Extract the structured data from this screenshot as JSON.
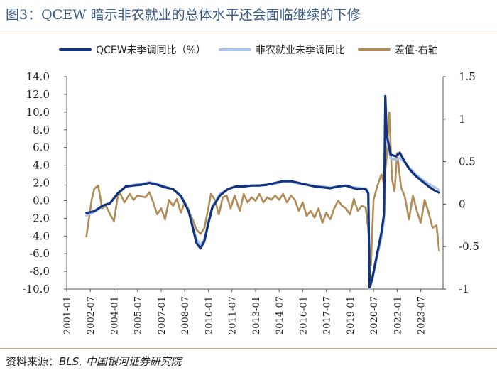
{
  "title": "图3：QCEW 暗示非农就业的总体水平还会面临继续的下修",
  "source": {
    "prefix": "资料来源：",
    "text": "BLS,  中国银河证券研究院"
  },
  "colors": {
    "qcew": "#12337f",
    "nonfarm": "#a8c4ea",
    "diff": "#b08b55",
    "title": "#3a5a86",
    "axis": "#555555"
  },
  "chart_data": {
    "type": "line",
    "legend_position": "top",
    "grid": false,
    "x_tick_labels": [
      "2001-01",
      "2002-07",
      "2004-01",
      "2005-07",
      "2007-01",
      "2008-07",
      "2010-01",
      "2011-07",
      "2013-01",
      "2014-07",
      "2016-01",
      "2017-07",
      "2019-01",
      "2020-07",
      "2022-01",
      "2023-07"
    ],
    "x_range": [
      "2001-01",
      "2024-12"
    ],
    "y_left": {
      "range": [
        -10,
        14
      ],
      "ticks": [
        "14.0",
        "12.0",
        "10.0",
        "8.0",
        "6.0",
        "4.0",
        "2.0",
        "0.0",
        "-2.0",
        "-4.0",
        "-6.0",
        "-8.0",
        "-10.0"
      ]
    },
    "y_right": {
      "range": [
        -1,
        1.5
      ],
      "ticks": [
        "1.5",
        "1",
        "0.5",
        "0",
        "-0.5",
        "-1"
      ]
    },
    "series": [
      {
        "name": "QCEW未季调同比（%）",
        "axis": "left",
        "points": [
          [
            "2002-04",
            -1.4
          ],
          [
            "2002-10",
            -1.2
          ],
          [
            "2003-04",
            -0.6
          ],
          [
            "2003-10",
            -0.3
          ],
          [
            "2004-04",
            0.8
          ],
          [
            "2004-10",
            1.6
          ],
          [
            "2005-04",
            1.7
          ],
          [
            "2005-10",
            1.8
          ],
          [
            "2006-04",
            2.0
          ],
          [
            "2006-10",
            1.8
          ],
          [
            "2007-04",
            1.5
          ],
          [
            "2007-10",
            1.3
          ],
          [
            "2008-04",
            0.5
          ],
          [
            "2008-07",
            -0.3
          ],
          [
            "2008-10",
            -1.2
          ],
          [
            "2009-01",
            -3.0
          ],
          [
            "2009-04",
            -4.8
          ],
          [
            "2009-07",
            -5.4
          ],
          [
            "2009-10",
            -4.6
          ],
          [
            "2010-01",
            -2.6
          ],
          [
            "2010-04",
            -0.8
          ],
          [
            "2010-10",
            0.6
          ],
          [
            "2011-04",
            1.3
          ],
          [
            "2011-10",
            1.6
          ],
          [
            "2012-04",
            1.6
          ],
          [
            "2012-10",
            1.7
          ],
          [
            "2013-04",
            1.7
          ],
          [
            "2013-10",
            1.8
          ],
          [
            "2014-04",
            2.0
          ],
          [
            "2014-10",
            2.2
          ],
          [
            "2015-04",
            2.2
          ],
          [
            "2015-10",
            2.0
          ],
          [
            "2016-04",
            1.8
          ],
          [
            "2016-10",
            1.6
          ],
          [
            "2017-04",
            1.5
          ],
          [
            "2017-10",
            1.4
          ],
          [
            "2018-04",
            1.6
          ],
          [
            "2018-10",
            1.7
          ],
          [
            "2019-04",
            1.4
          ],
          [
            "2019-10",
            1.3
          ],
          [
            "2020-01",
            1.3
          ],
          [
            "2020-03",
            0.8
          ],
          [
            "2020-04",
            -9.8
          ],
          [
            "2020-06",
            -8.8
          ],
          [
            "2020-10",
            -5.8
          ],
          [
            "2021-01",
            -3.6
          ],
          [
            "2021-03",
            -1.5
          ],
          [
            "2021-04",
            11.8
          ],
          [
            "2021-05",
            7.5
          ],
          [
            "2021-08",
            5.2
          ],
          [
            "2021-12",
            5.0
          ],
          [
            "2022-03",
            5.4
          ],
          [
            "2022-06",
            4.6
          ],
          [
            "2022-10",
            3.6
          ],
          [
            "2023-03",
            2.8
          ],
          [
            "2023-08",
            2.2
          ],
          [
            "2024-01",
            1.6
          ],
          [
            "2024-06",
            1.1
          ],
          [
            "2024-09",
            0.9
          ]
        ]
      },
      {
        "name": "非农就业未季调同比",
        "axis": "left",
        "points": [
          [
            "2002-04",
            -1.7
          ],
          [
            "2002-10",
            -1.3
          ],
          [
            "2003-04",
            -0.7
          ],
          [
            "2003-10",
            -0.3
          ],
          [
            "2004-04",
            0.9
          ],
          [
            "2004-10",
            1.6
          ],
          [
            "2005-04",
            1.8
          ],
          [
            "2005-10",
            1.9
          ],
          [
            "2006-04",
            2.1
          ],
          [
            "2006-10",
            1.9
          ],
          [
            "2007-04",
            1.6
          ],
          [
            "2007-10",
            1.3
          ],
          [
            "2008-04",
            0.6
          ],
          [
            "2008-07",
            -0.2
          ],
          [
            "2008-10",
            -1.0
          ],
          [
            "2009-01",
            -2.8
          ],
          [
            "2009-04",
            -4.4
          ],
          [
            "2009-07",
            -5.0
          ],
          [
            "2009-10",
            -4.3
          ],
          [
            "2010-01",
            -2.4
          ],
          [
            "2010-04",
            -0.6
          ],
          [
            "2010-10",
            0.8
          ],
          [
            "2011-04",
            1.3
          ],
          [
            "2011-10",
            1.6
          ],
          [
            "2012-04",
            1.7
          ],
          [
            "2012-10",
            1.7
          ],
          [
            "2013-04",
            1.7
          ],
          [
            "2013-10",
            1.8
          ],
          [
            "2014-04",
            1.9
          ],
          [
            "2014-10",
            2.1
          ],
          [
            "2015-04",
            2.1
          ],
          [
            "2015-10",
            1.9
          ],
          [
            "2016-04",
            1.8
          ],
          [
            "2016-10",
            1.7
          ],
          [
            "2017-04",
            1.6
          ],
          [
            "2017-10",
            1.5
          ],
          [
            "2018-04",
            1.6
          ],
          [
            "2018-10",
            1.7
          ],
          [
            "2019-04",
            1.5
          ],
          [
            "2019-10",
            1.4
          ],
          [
            "2020-01",
            1.4
          ],
          [
            "2020-03",
            1.0
          ],
          [
            "2020-04",
            -10.0
          ],
          [
            "2020-06",
            -9.0
          ],
          [
            "2020-10",
            -6.2
          ],
          [
            "2021-01",
            -4.2
          ],
          [
            "2021-03",
            -2.2
          ],
          [
            "2021-04",
            10.8
          ],
          [
            "2021-05",
            6.8
          ],
          [
            "2021-08",
            4.8
          ],
          [
            "2021-12",
            4.6
          ],
          [
            "2022-03",
            4.8
          ],
          [
            "2022-06",
            4.4
          ],
          [
            "2022-10",
            3.8
          ],
          [
            "2023-03",
            3.0
          ],
          [
            "2023-08",
            2.4
          ],
          [
            "2024-01",
            1.9
          ],
          [
            "2024-06",
            1.5
          ],
          [
            "2024-09",
            1.2
          ]
        ]
      },
      {
        "name": "差值-右轴",
        "axis": "right",
        "points": [
          [
            "2002-04",
            -0.38
          ],
          [
            "2002-08",
            0.05
          ],
          [
            "2002-10",
            0.18
          ],
          [
            "2003-01",
            0.22
          ],
          [
            "2003-04",
            -0.05
          ],
          [
            "2003-07",
            -0.02
          ],
          [
            "2003-10",
            -0.12
          ],
          [
            "2004-01",
            -0.2
          ],
          [
            "2004-04",
            0.1
          ],
          [
            "2004-06",
            0.12
          ],
          [
            "2004-09",
            0.02
          ],
          [
            "2005-01",
            0.12
          ],
          [
            "2005-04",
            0.05
          ],
          [
            "2005-07",
            0.1
          ],
          [
            "2006-01",
            0.08
          ],
          [
            "2006-04",
            0.14
          ],
          [
            "2006-07",
            0.02
          ],
          [
            "2006-10",
            -0.12
          ],
          [
            "2007-01",
            -0.05
          ],
          [
            "2007-04",
            -0.18
          ],
          [
            "2007-07",
            0.05
          ],
          [
            "2007-10",
            -0.02
          ],
          [
            "2008-01",
            0.06
          ],
          [
            "2008-04",
            -0.1
          ],
          [
            "2008-07",
            0.02
          ],
          [
            "2008-10",
            -0.08
          ],
          [
            "2009-01",
            -0.18
          ],
          [
            "2009-04",
            -0.3
          ],
          [
            "2009-07",
            -0.35
          ],
          [
            "2009-10",
            -0.28
          ],
          [
            "2010-01",
            -0.05
          ],
          [
            "2010-03",
            0.12
          ],
          [
            "2010-06",
            0.05
          ],
          [
            "2010-09",
            -0.12
          ],
          [
            "2010-12",
            0.08
          ],
          [
            "2011-03",
            0.1
          ],
          [
            "2011-06",
            -0.05
          ],
          [
            "2011-09",
            0.1
          ],
          [
            "2012-01",
            -0.08
          ],
          [
            "2012-04",
            0.12
          ],
          [
            "2012-07",
            0.02
          ],
          [
            "2012-10",
            0.08
          ],
          [
            "2013-01",
            0.04
          ],
          [
            "2013-04",
            0.12
          ],
          [
            "2013-07",
            0.02
          ],
          [
            "2013-10",
            0.08
          ],
          [
            "2014-01",
            0.05
          ],
          [
            "2014-04",
            0.1
          ],
          [
            "2014-07",
            0.05
          ],
          [
            "2014-10",
            0.12
          ],
          [
            "2015-01",
            0.02
          ],
          [
            "2015-04",
            0.1
          ],
          [
            "2015-07",
            0.05
          ],
          [
            "2015-10",
            -0.08
          ],
          [
            "2016-01",
            0.02
          ],
          [
            "2016-04",
            -0.14
          ],
          [
            "2016-07",
            -0.08
          ],
          [
            "2016-10",
            -0.16
          ],
          [
            "2017-01",
            -0.05
          ],
          [
            "2017-04",
            -0.22
          ],
          [
            "2017-07",
            -0.1
          ],
          [
            "2017-10",
            -0.18
          ],
          [
            "2018-01",
            -0.05
          ],
          [
            "2018-04",
            0.04
          ],
          [
            "2018-07",
            -0.02
          ],
          [
            "2018-10",
            -0.05
          ],
          [
            "2019-01",
            -0.12
          ],
          [
            "2019-04",
            0.06
          ],
          [
            "2019-07",
            -0.08
          ],
          [
            "2019-10",
            -0.02
          ],
          [
            "2020-01",
            -0.04
          ],
          [
            "2020-03",
            -0.3
          ],
          [
            "2020-05",
            -0.72
          ],
          [
            "2020-07",
            0.05
          ],
          [
            "2020-10",
            0.22
          ],
          [
            "2021-01",
            0.35
          ],
          [
            "2021-03",
            0.25
          ],
          [
            "2021-05",
            0.55
          ],
          [
            "2021-07",
            1.08
          ],
          [
            "2021-09",
            0.3
          ],
          [
            "2021-11",
            0.15
          ],
          [
            "2022-01",
            0.6
          ],
          [
            "2022-04",
            0.2
          ],
          [
            "2022-07",
            0.08
          ],
          [
            "2022-10",
            -0.18
          ],
          [
            "2023-01",
            0.1
          ],
          [
            "2023-04",
            -0.08
          ],
          [
            "2023-07",
            -0.22
          ],
          [
            "2023-10",
            0.05
          ],
          [
            "2024-01",
            -0.1
          ],
          [
            "2024-04",
            -0.28
          ],
          [
            "2024-07",
            -0.25
          ],
          [
            "2024-09",
            -0.55
          ]
        ]
      }
    ]
  }
}
